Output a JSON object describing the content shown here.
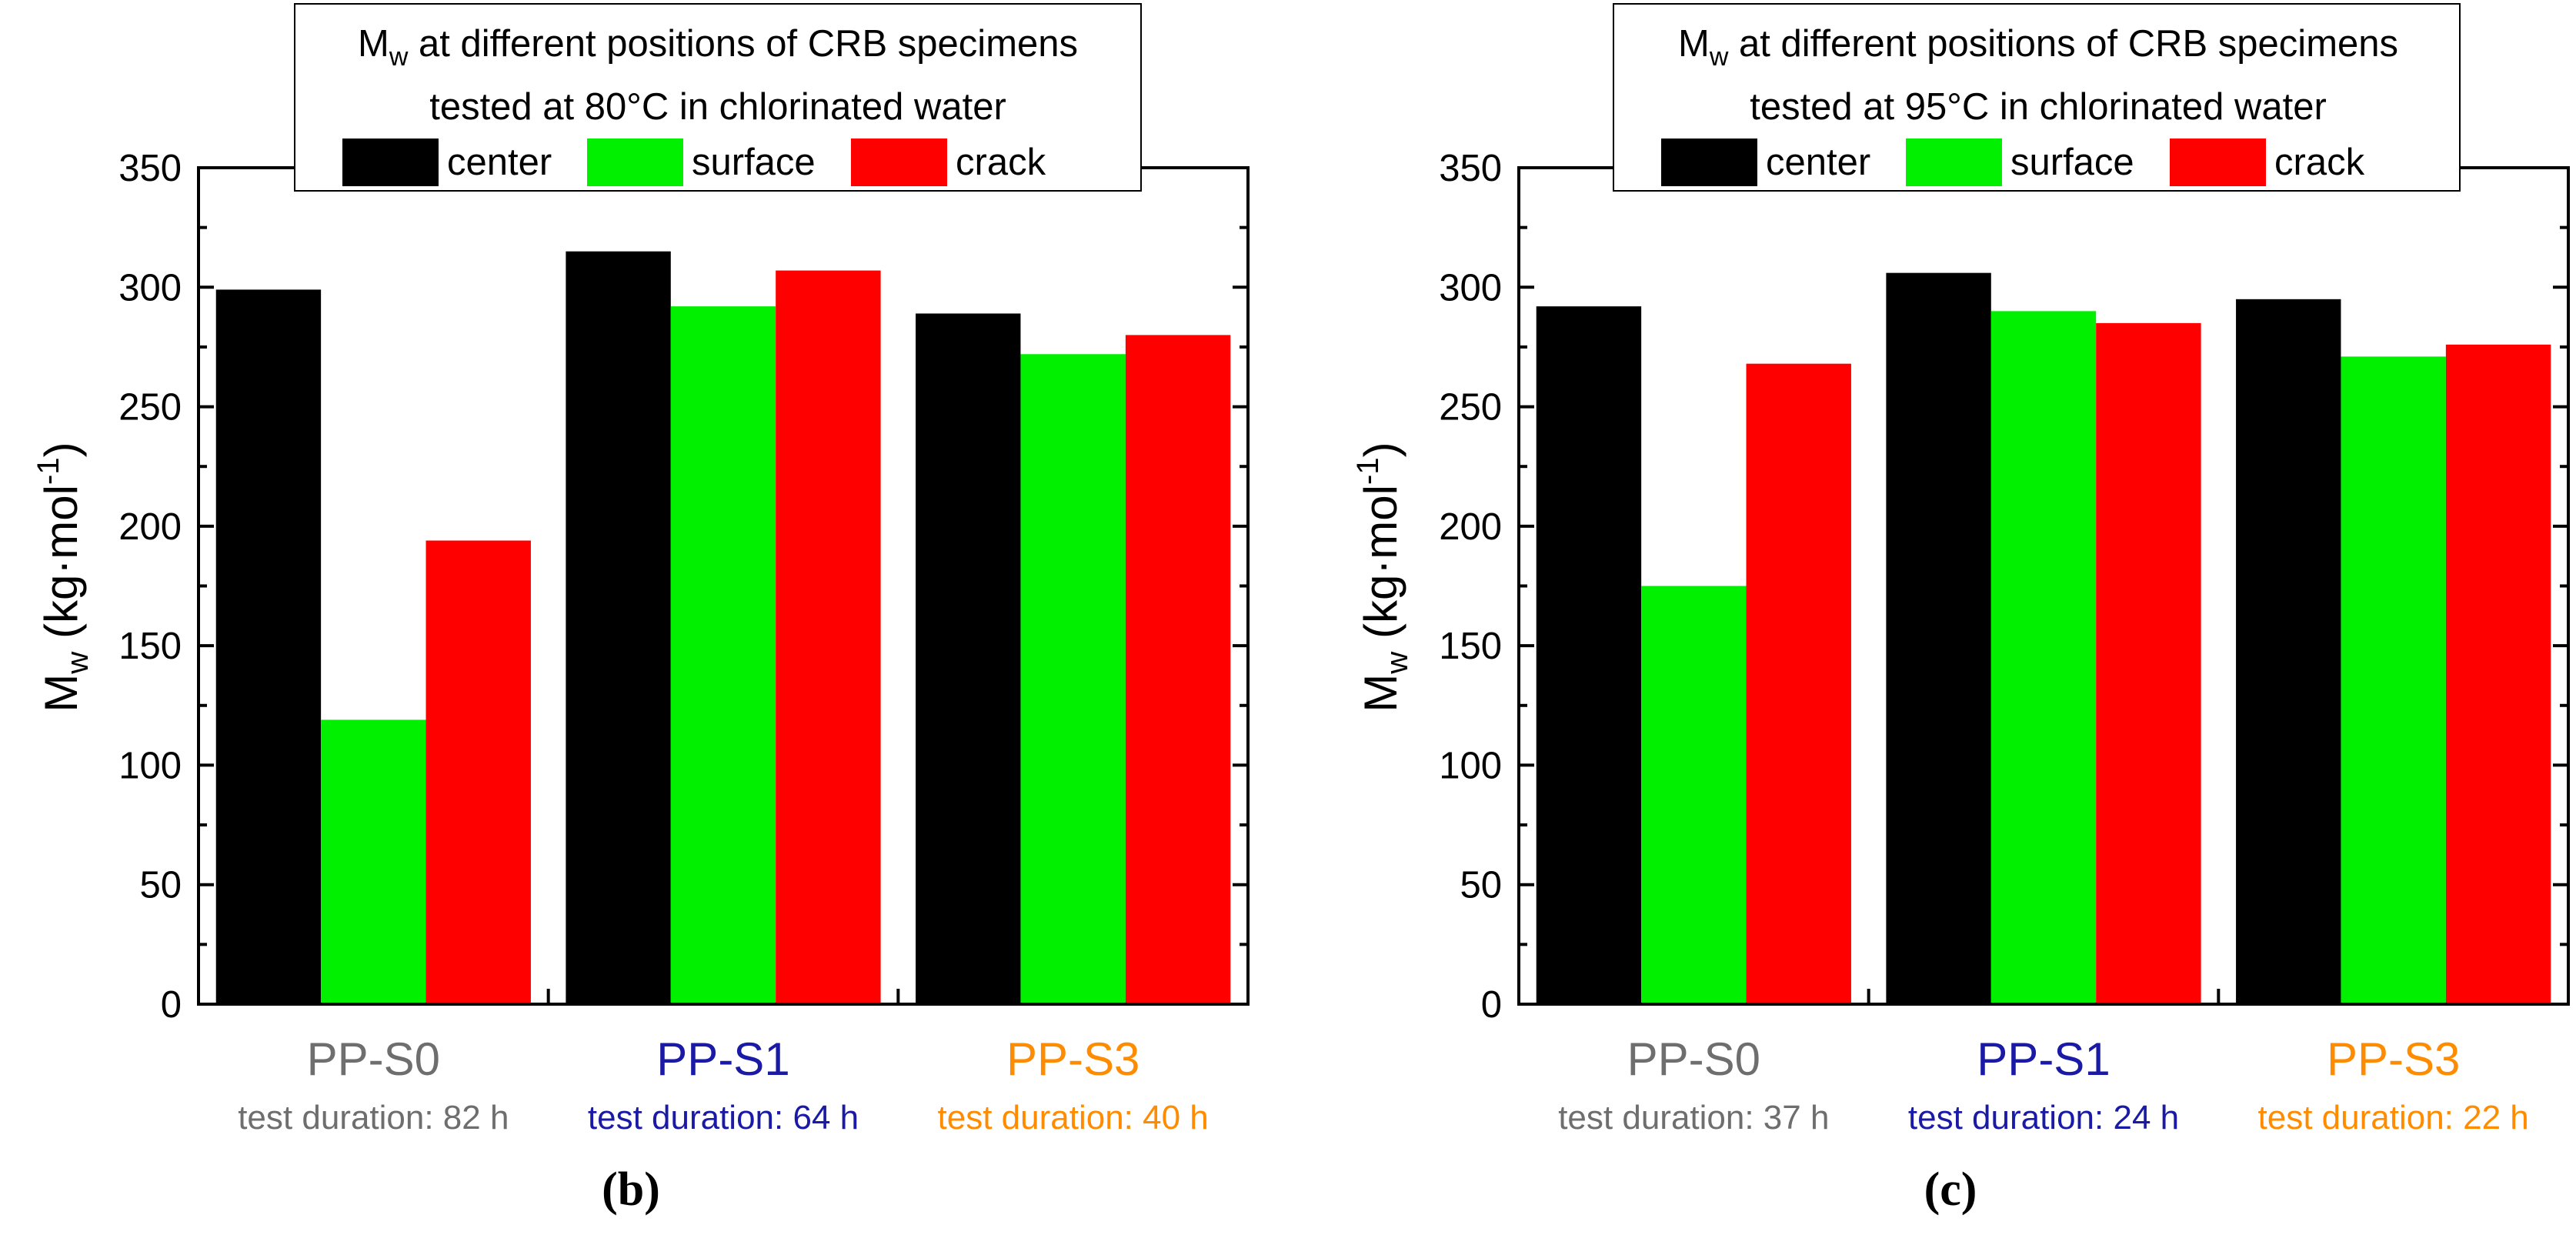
{
  "chart_data": [
    {
      "type": "bar",
      "panel_label": "(b)",
      "title": {
        "prefix": "M",
        "subscript": "w",
        "line1_rest": " at different positions of CRB specimens",
        "line2": "tested at 80°C in chlorinated water"
      },
      "ylabel": {
        "main": "M",
        "sub": "w",
        "unit": " (kg·mol",
        "sup": "-1",
        "close": ")"
      },
      "ylim": [
        0,
        350
      ],
      "yticks": [
        "0",
        "50",
        "100",
        "150",
        "200",
        "250",
        "300",
        "350"
      ],
      "categories": [
        "PP-S0",
        "PP-S1",
        "PP-S3"
      ],
      "category_colors": [
        "#6e6e6e",
        "#1a1aa6",
        "#ff8c00"
      ],
      "durations": [
        "test duration: 82 h",
        "test duration: 64 h",
        "test duration: 40 h"
      ],
      "legend_position": "top-center",
      "series": [
        {
          "name": "center",
          "color": "#000000",
          "values": [
            299,
            315,
            289
          ]
        },
        {
          "name": "surface",
          "color": "#00f000",
          "values": [
            119,
            292,
            272
          ]
        },
        {
          "name": "crack",
          "color": "#ff0000",
          "values": [
            194,
            307,
            280
          ]
        }
      ]
    },
    {
      "type": "bar",
      "panel_label": "(c)",
      "title": {
        "prefix": "M",
        "subscript": "w",
        "line1_rest": " at different positions of CRB specimens",
        "line2": "tested at 95°C in chlorinated water"
      },
      "ylabel": {
        "main": "M",
        "sub": "w",
        "unit": " (kg·mol",
        "sup": "-1",
        "close": ")"
      },
      "ylim": [
        0,
        350
      ],
      "yticks": [
        "0",
        "50",
        "100",
        "150",
        "200",
        "250",
        "300",
        "350"
      ],
      "categories": [
        "PP-S0",
        "PP-S1",
        "PP-S3"
      ],
      "category_colors": [
        "#6e6e6e",
        "#1a1aa6",
        "#ff8c00"
      ],
      "durations": [
        "test duration: 37 h",
        "test duration: 24 h",
        "test duration: 22 h"
      ],
      "legend_position": "top-center",
      "series": [
        {
          "name": "center",
          "color": "#000000",
          "values": [
            292,
            306,
            295
          ]
        },
        {
          "name": "surface",
          "color": "#00f000",
          "values": [
            175,
            290,
            271
          ]
        },
        {
          "name": "crack",
          "color": "#ff0000",
          "values": [
            268,
            285,
            276
          ]
        }
      ]
    }
  ]
}
